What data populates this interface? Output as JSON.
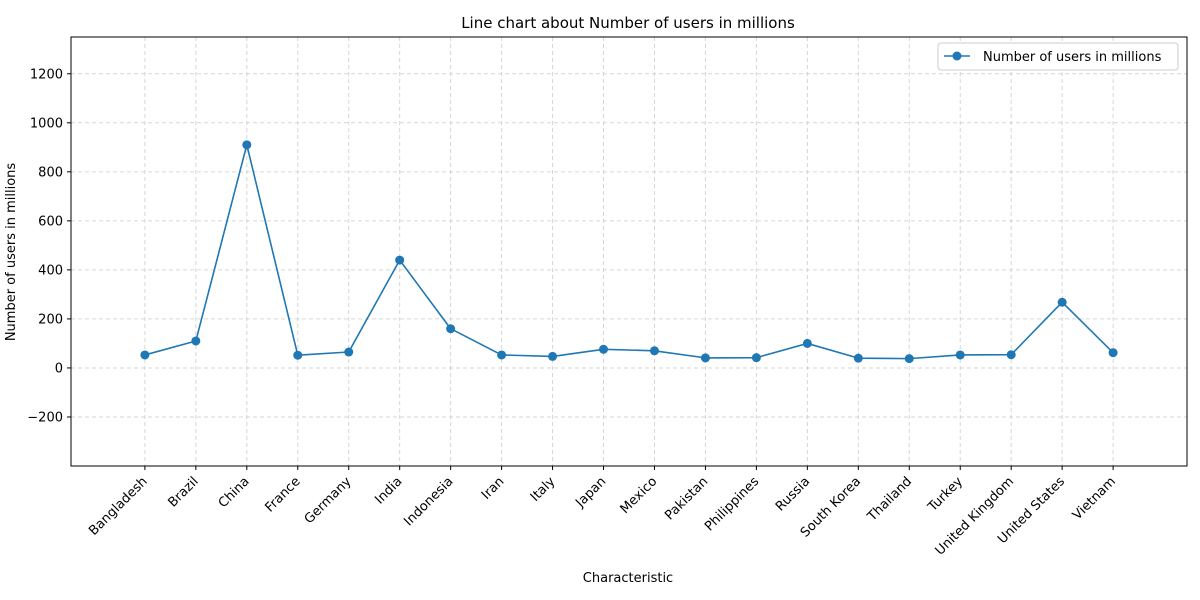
{
  "chart_data": {
    "type": "line",
    "title": "Line chart about Number of users in millions",
    "xlabel": "Characteristic",
    "ylabel": "Number of users in millions",
    "categories": [
      "Bangladesh",
      "Brazil",
      "China",
      "France",
      "Germany",
      "India",
      "Indonesia",
      "Iran",
      "Italy",
      "Japan",
      "Mexico",
      "Pakistan",
      "Philippines",
      "Russia",
      "South Korea",
      "Thailand",
      "Turkey",
      "United Kingdom",
      "United States",
      "Vietnam"
    ],
    "series": [
      {
        "name": "Number of users in millions",
        "values": [
          53,
          110,
          910,
          52,
          65,
          440,
          160,
          53,
          47,
          76,
          70,
          41,
          42,
          100,
          40,
          38,
          53,
          54,
          268,
          62
        ],
        "color": "#1f77b4"
      }
    ],
    "ylim": [
      -400,
      1350
    ],
    "yticks": [
      -200,
      0,
      200,
      400,
      600,
      800,
      1000,
      1200
    ],
    "grid": true,
    "legend_position": "top-right"
  }
}
